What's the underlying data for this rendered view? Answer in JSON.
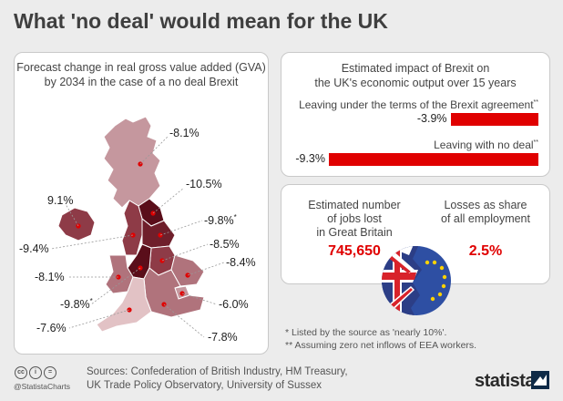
{
  "title": "What 'no deal' would mean for the UK",
  "colors": {
    "accent": "#e00000",
    "map_shades": [
      "#c5979e",
      "#b0737c",
      "#8e3b47",
      "#6f1f2b",
      "#5a0e1a",
      "#e2c2c5"
    ]
  },
  "map_panel": {
    "caption_line1": "Forecast change in real gross value added (GVA)",
    "caption_line2": "by 2034 in the case of a no deal Brexit",
    "labels": [
      {
        "id": "scotland",
        "text": "-8.1%"
      },
      {
        "id": "northern-ireland",
        "text": "9.1%"
      },
      {
        "id": "north-east",
        "text": "-10.5%"
      },
      {
        "id": "north-west",
        "text": "-9.4%"
      },
      {
        "id": "yorkshire",
        "text": "-9.8%",
        "star": "*"
      },
      {
        "id": "east-midlands",
        "text": "-8.5%"
      },
      {
        "id": "east",
        "text": "-8.4%"
      },
      {
        "id": "wales",
        "text": "-8.1%"
      },
      {
        "id": "west-midlands",
        "text": "-9.8%",
        "star": "*"
      },
      {
        "id": "london",
        "text": "-6.0%"
      },
      {
        "id": "south-west",
        "text": "-7.6%"
      },
      {
        "id": "south-east",
        "text": "-7.8%"
      }
    ]
  },
  "impact_panel": {
    "caption_line1": "Estimated impact of Brexit on",
    "caption_line2": "the UK's economic output over 15 years",
    "scenarios": [
      {
        "label": "Leaving under the terms of the Brexit agreement",
        "star": "**",
        "value_text": "-3.9%"
      },
      {
        "label": "Leaving with no deal",
        "star": "**",
        "value_text": "-9.3%"
      }
    ]
  },
  "jobs_panel": {
    "jobs_head_line1": "Estimated number",
    "jobs_head_line2": "of jobs lost",
    "jobs_head_line3": "in Great Britain",
    "jobs_value": "745,650",
    "share_head_line1": "Losses as share",
    "share_head_line2": "of all employment",
    "share_value": "2.5%"
  },
  "footnotes": {
    "note1": "*   Listed by the source as 'nearly 10%'.",
    "note2": "** Assuming zero net inflows of EEA workers."
  },
  "footer": {
    "cc_marks": [
      "cc",
      "i",
      "="
    ],
    "handle": "@StatistaCharts",
    "source_line1": "Sources: Confederation of British Industry, HM Treasury,",
    "source_line2": "UK Trade Policy Observatory, University of Sussex",
    "brand": "statista"
  },
  "chart_data": [
    {
      "type": "map",
      "title": "Forecast change in real gross value added (GVA) by 2034 in the case of a no deal Brexit",
      "unit": "%",
      "regions": [
        {
          "region": "Scotland",
          "value": -8.1
        },
        {
          "region": "Northern Ireland",
          "value": 9.1
        },
        {
          "region": "North East",
          "value": -10.5
        },
        {
          "region": "North West",
          "value": -9.4
        },
        {
          "region": "Yorkshire and the Humber",
          "value": -9.8,
          "note": "*"
        },
        {
          "region": "East Midlands",
          "value": -8.5
        },
        {
          "region": "East of England",
          "value": -8.4
        },
        {
          "region": "Wales",
          "value": -8.1
        },
        {
          "region": "West Midlands",
          "value": -9.8,
          "note": "*"
        },
        {
          "region": "London",
          "value": -6.0
        },
        {
          "region": "South West",
          "value": -7.6
        },
        {
          "region": "South East",
          "value": -7.8
        }
      ]
    },
    {
      "type": "bar",
      "title": "Estimated impact of Brexit on the UK's economic output over 15 years",
      "categories": [
        "Leaving under the terms of the Brexit agreement",
        "Leaving with no deal"
      ],
      "values": [
        -3.9,
        -9.3
      ],
      "unit": "%"
    }
  ]
}
